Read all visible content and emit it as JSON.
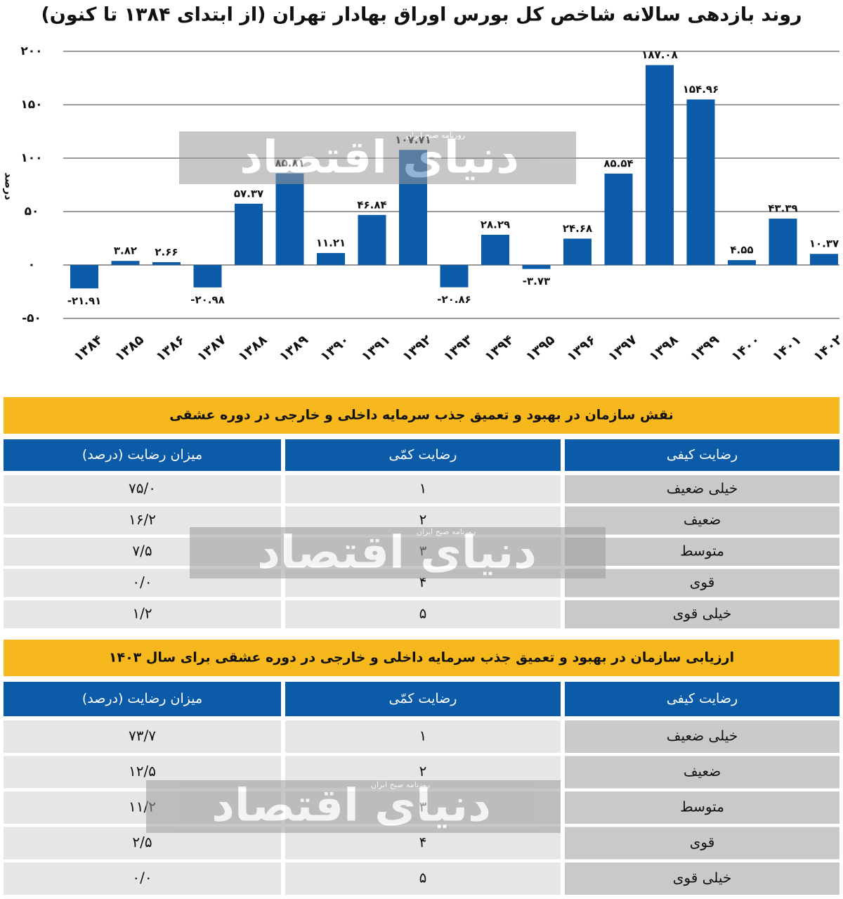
{
  "chart_data": {
    "type": "bar",
    "title": "روند بازدهی سالانه شاخص کل بورس اوراق بهادار تهران (از ابتدای ۱۳۸۴ تا کنون)",
    "y_label": "درصد",
    "categories": [
      "۱۳۸۴",
      "۱۳۸۵",
      "۱۳۸۶",
      "۱۳۸۷",
      "۱۳۸۸",
      "۱۳۸۹",
      "۱۳۹۰",
      "۱۳۹۱",
      "۱۳۹۲",
      "۱۳۹۳",
      "۱۳۹۴",
      "۱۳۹۵",
      "۱۳۹۶",
      "۱۳۹۷",
      "۱۳۹۸",
      "۱۳۹۹",
      "۱۴۰۰",
      "۱۴۰۱",
      "۱۴۰۲"
    ],
    "values": [
      -21.91,
      3.82,
      2.66,
      -20.98,
      57.37,
      85.81,
      11.21,
      46.84,
      107.71,
      -20.86,
      28.29,
      -3.73,
      24.68,
      85.54,
      187.08,
      154.96,
      4.55,
      43.39,
      10.37
    ],
    "value_labels": [
      "-۲۱.۹۱",
      "۳.۸۲",
      "۲.۶۶",
      "-۲۰.۹۸",
      "۵۷.۳۷",
      "۸۵.۸۱",
      "۱۱.۲۱",
      "۴۶.۸۴",
      "۱۰۷.۷۱",
      "-۲۰.۸۶",
      "۲۸.۲۹",
      "-۳.۷۳",
      "۲۴.۶۸",
      "۸۵.۵۴",
      "۱۸۷.۰۸",
      "۱۵۴.۹۶",
      "۴.۵۵",
      "۴۳.۳۹",
      "۱۰.۳۷"
    ],
    "color": "#0b5ba8",
    "ylim": [
      -50,
      200
    ],
    "yticks": [
      {
        "value": -50,
        "label": "-۵۰"
      },
      {
        "value": 0,
        "label": "۰"
      },
      {
        "value": 50,
        "label": "۵۰"
      },
      {
        "value": 100,
        "label": "۱۰۰"
      },
      {
        "value": 150,
        "label": "۱۵۰"
      },
      {
        "value": 200,
        "label": "۲۰۰"
      }
    ],
    "grid": true
  },
  "tables": [
    {
      "title": "نقش سازمان در بهبود و تعمیق جذب سرمایه داخلی و خارجی در دوره عشقی",
      "headers": [
        "رضایت کیفی",
        "رضایت کمّی",
        "میزان رضایت (درصد)"
      ],
      "rows": [
        [
          "خیلی ضعیف",
          "۱",
          "۷۵/۰"
        ],
        [
          "ضعیف",
          "۲",
          "۱۶/۲"
        ],
        [
          "متوسط",
          "۳",
          "۷/۵"
        ],
        [
          "قوی",
          "۴",
          "۰/۰"
        ],
        [
          "خیلی قوی",
          "۵",
          "۱/۲"
        ]
      ]
    },
    {
      "title": "ارزیابی سازمان در بهبود و تعمیق جذب سرمایه داخلی و خارجی در دوره عشقی برای سال ۱۴۰۳",
      "headers": [
        "رضایت کیفی",
        "رضایت کمّی",
        "میزان رضایت (درصد)"
      ],
      "rows": [
        [
          "خیلی ضعیف",
          "۱",
          "۷۳/۷"
        ],
        [
          "ضعیف",
          "۲",
          "۱۲/۵"
        ],
        [
          "متوسط",
          "۳",
          "۱۱/۲"
        ],
        [
          "قوی",
          "۴",
          "۲/۵"
        ],
        [
          "خیلی قوی",
          "۵",
          "۰/۰"
        ]
      ]
    }
  ],
  "watermark": {
    "logo": "دنیای اقتصاد",
    "tagline": "روزنامه صبح ایران"
  }
}
